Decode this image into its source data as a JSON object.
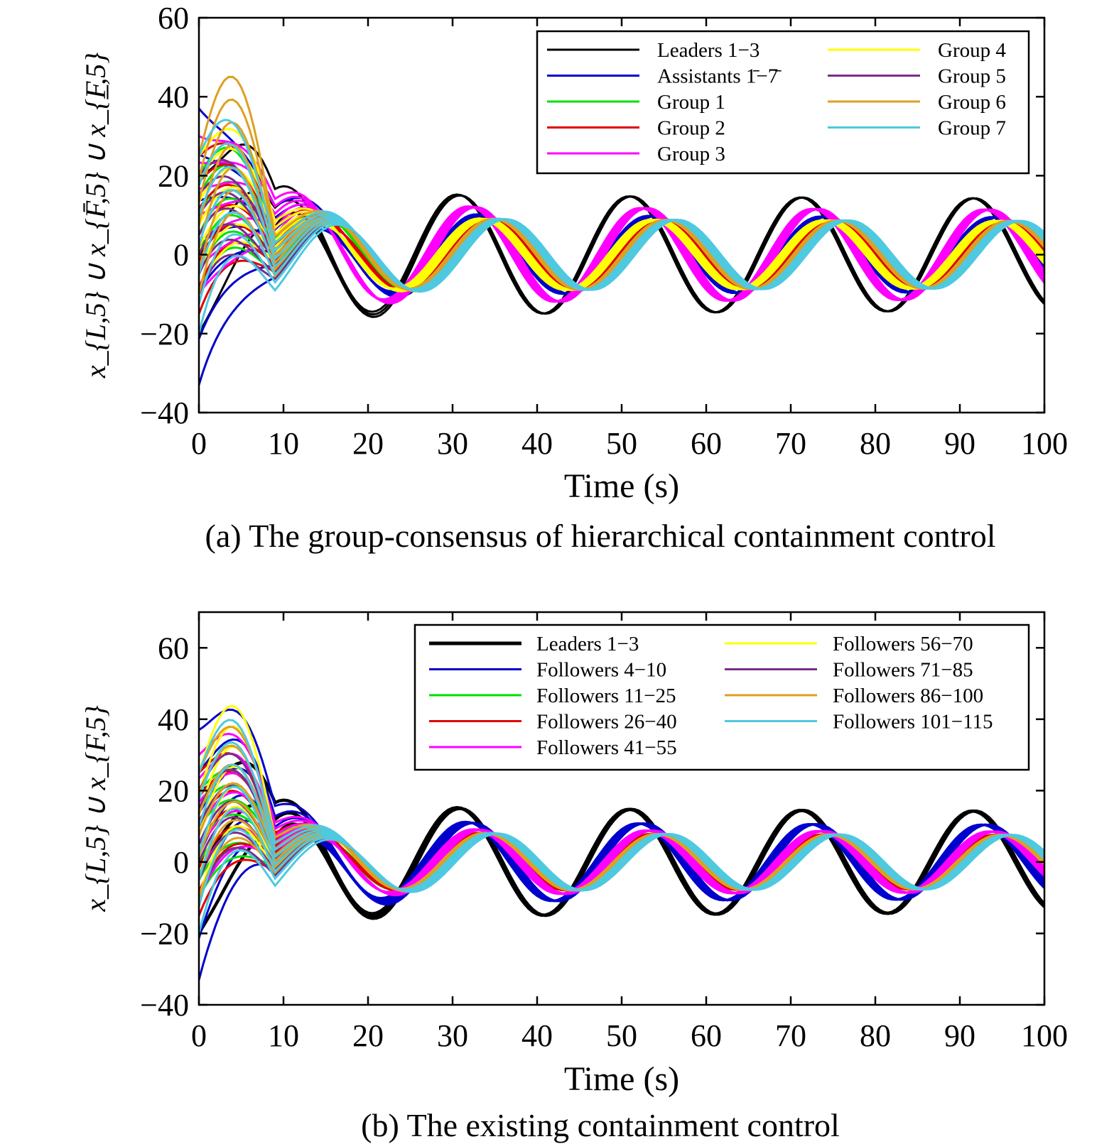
{
  "chart_data": [
    {
      "type": "line",
      "panel": "a",
      "caption": "(a) The group-consensus of hierarchical containment control",
      "xlabel": "Time (s)",
      "ylabel": "x_{L,5} ∪ x_{F̄,5} ∪ x_{F̲,5}",
      "xlim": [
        0,
        100
      ],
      "ylim": [
        -40,
        60
      ],
      "xticks": [
        "0",
        "10",
        "20",
        "30",
        "40",
        "50",
        "60",
        "70",
        "80",
        "90",
        "100"
      ],
      "yticks": [
        "−40",
        "−20",
        "0",
        "20",
        "40",
        "60"
      ],
      "grid": false,
      "legend_position": "top-right",
      "legend_columns": 2,
      "series": [
        {
          "name": "Leaders 1−3",
          "color": "#000000",
          "t0": [
            -20,
            20
          ],
          "amp_final": 15,
          "phase": 0,
          "bump": 20
        },
        {
          "name": "Assistants 1̄−7̄",
          "color": "#0000cc",
          "t0": [
            -33,
            37
          ],
          "amp_final": 10,
          "phase": 0.9,
          "bump": 15
        },
        {
          "name": "Group 1",
          "color": "#00e000",
          "t0": [
            -10,
            20
          ],
          "amp_final": 9,
          "phase": 1.4,
          "bump": 22
        },
        {
          "name": "Group 2",
          "color": "#e00000",
          "t0": [
            -15,
            25
          ],
          "amp_final": 9,
          "phase": 1.2,
          "bump": 20
        },
        {
          "name": "Group 3",
          "color": "#ff00ff",
          "t0": [
            -10,
            30
          ],
          "amp_final": 12,
          "phase": 0.6,
          "bump": 18
        },
        {
          "name": "Group 4",
          "color": "#ffff00",
          "t0": [
            -10,
            25
          ],
          "amp_final": 9,
          "phase": 1.0,
          "bump": 24
        },
        {
          "name": "Group 5",
          "color": "#7a2d8a",
          "t0": [
            -10,
            20
          ],
          "amp_final": 9,
          "phase": 1.6,
          "bump": 18
        },
        {
          "name": "Group 6",
          "color": "#dda020",
          "t0": [
            -10,
            25
          ],
          "amp_final": 9,
          "phase": 1.5,
          "bump": 38
        },
        {
          "name": "Group 7",
          "color": "#4ec9e0",
          "t0": [
            -20,
            25
          ],
          "amp_final": 9,
          "phase": 1.7,
          "bump": 26
        }
      ]
    },
    {
      "type": "line",
      "panel": "b",
      "caption": "(b) The existing containment control",
      "xlabel": "Time (s)",
      "ylabel": "x_{L,5} ∪ x_{F,5}",
      "xlim": [
        0,
        100
      ],
      "ylim": [
        -40,
        70
      ],
      "xticks": [
        "0",
        "10",
        "20",
        "30",
        "40",
        "50",
        "60",
        "70",
        "80",
        "90",
        "100"
      ],
      "yticks": [
        "−40",
        "−20",
        "0",
        "20",
        "40",
        "60"
      ],
      "grid": false,
      "legend_position": "top-right",
      "legend_columns": 2,
      "series": [
        {
          "name": "Leaders 1−3",
          "color": "#000000",
          "t0": [
            -20,
            20
          ],
          "amp_final": 15,
          "phase": 0,
          "bump": 20,
          "bold": true
        },
        {
          "name": "Followers 4−10",
          "color": "#0000cc",
          "t0": [
            -33,
            37
          ],
          "amp_final": 11,
          "phase": 0.5,
          "bump": 28
        },
        {
          "name": "Followers 11−25",
          "color": "#00e000",
          "t0": [
            -10,
            20
          ],
          "amp_final": 8,
          "phase": 1.0,
          "bump": 20
        },
        {
          "name": "Followers 26−40",
          "color": "#e00000",
          "t0": [
            -15,
            25
          ],
          "amp_final": 8,
          "phase": 1.0,
          "bump": 22
        },
        {
          "name": "Followers 41−55",
          "color": "#ff00ff",
          "t0": [
            -10,
            30
          ],
          "amp_final": 9,
          "phase": 0.8,
          "bump": 25
        },
        {
          "name": "Followers 56−70",
          "color": "#ffff00",
          "t0": [
            -10,
            25
          ],
          "amp_final": 8,
          "phase": 1.2,
          "bump": 36
        },
        {
          "name": "Followers 71−85",
          "color": "#7a2d8a",
          "t0": [
            -10,
            20
          ],
          "amp_final": 8,
          "phase": 1.3,
          "bump": 25
        },
        {
          "name": "Followers 86−100",
          "color": "#dda020",
          "t0": [
            -10,
            25
          ],
          "amp_final": 8,
          "phase": 1.2,
          "bump": 30
        },
        {
          "name": "Followers 101−115",
          "color": "#4ec9e0",
          "t0": [
            -20,
            25
          ],
          "amp_final": 8,
          "phase": 1.4,
          "bump": 32
        }
      ]
    }
  ]
}
